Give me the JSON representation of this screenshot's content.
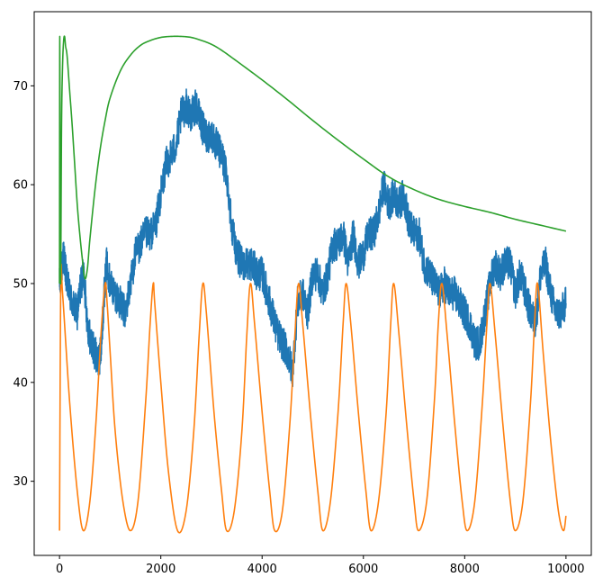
{
  "chart_data": {
    "type": "line",
    "title": "",
    "xlabel": "",
    "ylabel": "",
    "xlim": [
      -500,
      10500
    ],
    "ylim": [
      22.5,
      77.5
    ],
    "xticks": [
      0,
      2000,
      4000,
      6000,
      8000,
      10000
    ],
    "xtick_labels": [
      "0",
      "2000",
      "4000",
      "6000",
      "8000",
      "10000"
    ],
    "yticks": [
      30,
      40,
      50,
      60,
      70
    ],
    "ytick_labels": [
      "30",
      "40",
      "50",
      "60",
      "70"
    ],
    "grid": false,
    "legend": "none",
    "series": [
      {
        "color": "#1f77b4",
        "noise": 0.8,
        "x": [
          0,
          30,
          80,
          150,
          250,
          350,
          420,
          480,
          550,
          620,
          700,
          780,
          830,
          880,
          930,
          1000,
          1100,
          1200,
          1300,
          1400,
          1500,
          1600,
          1700,
          1800,
          1900,
          2000,
          2100,
          2200,
          2300,
          2400,
          2500,
          2600,
          2700,
          2800,
          2900,
          3000,
          3100,
          3200,
          3300,
          3400,
          3500,
          3600,
          3700,
          3800,
          3900,
          4000,
          4100,
          4200,
          4300,
          4400,
          4500,
          4600,
          4700,
          4800,
          4900,
          5000,
          5100,
          5200,
          5300,
          5400,
          5500,
          5600,
          5700,
          5800,
          5900,
          6000,
          6100,
          6200,
          6300,
          6400,
          6500,
          6600,
          6700,
          6800,
          6900,
          7000,
          7100,
          7200,
          7300,
          7400,
          7500,
          7600,
          7700,
          7800,
          7900,
          8000,
          8100,
          8200,
          8300,
          8400,
          8500,
          8600,
          8700,
          8800,
          8900,
          9000,
          9100,
          9200,
          9300,
          9400,
          9500,
          9600,
          9700,
          9800,
          9900,
          10000
        ],
        "y": [
          50,
          51,
          53,
          50,
          48,
          47,
          50,
          51,
          46,
          44,
          43,
          42,
          44,
          49,
          52,
          50,
          49,
          48,
          47,
          50,
          53,
          54,
          55,
          55,
          56,
          59,
          62,
          63,
          64,
          67,
          68,
          67,
          68,
          66,
          65,
          65,
          64,
          63,
          61,
          56,
          53,
          52,
          52,
          52,
          51,
          51,
          49,
          47,
          45,
          44,
          43,
          41,
          48,
          49,
          47,
          51,
          51,
          49,
          51,
          54,
          54,
          55,
          52,
          55,
          52,
          53,
          55,
          55,
          57,
          60,
          58,
          59,
          58,
          59,
          56,
          55,
          55,
          52,
          51,
          50,
          49,
          50,
          49,
          49,
          48,
          47,
          46,
          44,
          44,
          47,
          50,
          52,
          51,
          52,
          52,
          49,
          51,
          49,
          47,
          46,
          51,
          52,
          49,
          47,
          47,
          48
        ]
      },
      {
        "color": "#ff7f0e",
        "x": [
          0,
          25,
          60,
          200,
          350,
          470,
          600,
          720,
          820,
          900,
          940,
          1000,
          1100,
          1250,
          1400,
          1550,
          1700,
          1790,
          1850,
          1880,
          2000,
          2150,
          2330,
          2500,
          2650,
          2760,
          2830,
          2900,
          3050,
          3200,
          3300,
          3450,
          3600,
          3700,
          3770,
          3850,
          4000,
          4150,
          4250,
          4400,
          4550,
          4650,
          4720,
          4800,
          4950,
          5100,
          5200,
          5350,
          5500,
          5600,
          5660,
          5750,
          5900,
          6050,
          6150,
          6300,
          6450,
          6540,
          6600,
          6700,
          6850,
          7000,
          7090,
          7250,
          7400,
          7480,
          7550,
          7650,
          7800,
          7950,
          8050,
          8200,
          8350,
          8440,
          8500,
          8600,
          8750,
          8900,
          9000,
          9150,
          9300,
          9380,
          9440,
          9550,
          9700,
          9850,
          9950,
          10000
        ],
        "y": [
          25,
          50,
          49,
          38,
          29,
          25,
          28,
          36,
          45,
          50,
          48,
          43,
          35,
          28,
          25,
          28,
          38,
          46,
          50,
          48,
          40,
          31,
          25,
          27,
          35,
          45,
          50,
          47,
          37,
          29,
          25,
          27,
          35,
          45,
          50,
          46,
          37,
          29,
          25,
          27,
          36,
          45,
          50,
          46,
          37,
          29,
          25,
          28,
          37,
          46,
          50,
          46,
          37,
          29,
          25,
          28,
          37,
          46,
          50,
          45,
          36,
          28,
          25,
          28,
          38,
          46,
          50,
          45,
          36,
          28,
          25,
          28,
          38,
          46,
          50,
          45,
          36,
          28,
          25,
          28,
          38,
          46,
          50,
          43,
          34,
          27,
          25,
          26.5
        ]
      },
      {
        "color": "#2ca02c",
        "x": [
          0,
          5,
          20,
          40,
          60,
          80,
          100,
          120,
          150,
          200,
          250,
          300,
          350,
          400,
          450,
          500,
          550,
          600,
          700,
          800,
          900,
          1000,
          1200,
          1400,
          1600,
          1800,
          2000,
          2200,
          2400,
          2600,
          2800,
          3000,
          3200,
          3500,
          4000,
          4500,
          5000,
          5500,
          6000,
          6500,
          7000,
          7500,
          8000,
          8500,
          9000,
          9500,
          10000
        ],
        "y": [
          50,
          75,
          50,
          66,
          72,
          74.5,
          75,
          74,
          73,
          69.5,
          66,
          62,
          58,
          55,
          52.5,
          50.5,
          51.5,
          54.5,
          59.5,
          63.5,
          66.5,
          68.8,
          71.5,
          73.1,
          74.1,
          74.6,
          74.9,
          75,
          75,
          74.9,
          74.6,
          74.2,
          73.6,
          72.5,
          70.6,
          68.6,
          66.5,
          64.5,
          62.6,
          60.8,
          59.5,
          58.5,
          57.8,
          57.2,
          56.5,
          55.9,
          55.3
        ]
      }
    ]
  }
}
